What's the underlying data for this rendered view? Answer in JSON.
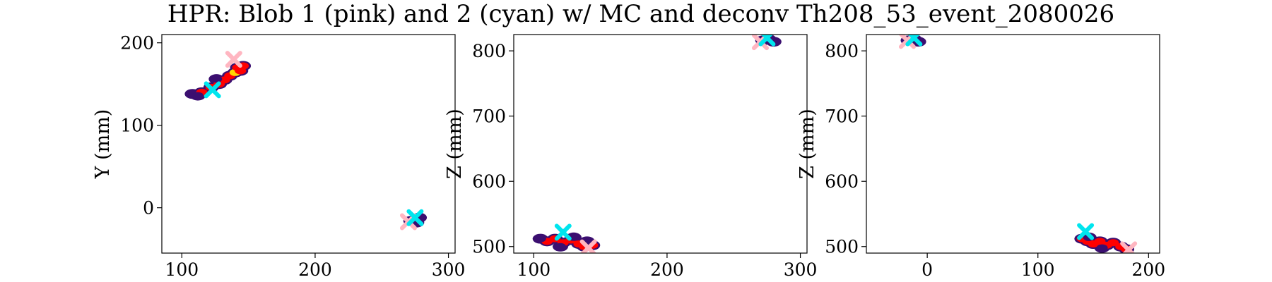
{
  "figure": {
    "title": "HPR: Blob 1 (pink) and 2 (cyan) w/ MC and deconv Th208_53_event_2080026"
  },
  "colors": {
    "blob1": "#ffb6c1",
    "blob2": "#00e5ee",
    "hit_low": "#3b0f70",
    "hit_mid": "#ff0000",
    "hit_high": "#ffd700"
  },
  "chart_data": [
    {
      "type": "scatter",
      "panel": "XY",
      "xlabel": "",
      "ylabel": "Y (mm)",
      "xlim": [
        85,
        305
      ],
      "ylim": [
        -55,
        210
      ],
      "xticks": [
        100,
        200,
        300
      ],
      "yticks": [
        0,
        100,
        200
      ],
      "grid": false,
      "hits": [
        {
          "x": 108,
          "y": 138,
          "e": 0.1
        },
        {
          "x": 115,
          "y": 140,
          "e": 0.5
        },
        {
          "x": 122,
          "y": 146,
          "e": 0.6
        },
        {
          "x": 128,
          "y": 150,
          "e": 0.5
        },
        {
          "x": 132,
          "y": 155,
          "e": 0.6
        },
        {
          "x": 136,
          "y": 160,
          "e": 0.7
        },
        {
          "x": 140,
          "y": 164,
          "e": 1.0
        },
        {
          "x": 142,
          "y": 170,
          "e": 0.6
        },
        {
          "x": 146,
          "y": 172,
          "e": 0.4
        },
        {
          "x": 144,
          "y": 166,
          "e": 0.3
        },
        {
          "x": 126,
          "y": 156,
          "e": 0.2
        },
        {
          "x": 112,
          "y": 136,
          "e": 0.1
        },
        {
          "x": 272,
          "y": -16,
          "e": 0.1
        },
        {
          "x": 278,
          "y": -12,
          "e": 0.2
        },
        {
          "x": 276,
          "y": -18,
          "e": 0.1
        }
      ],
      "blob1": [
        {
          "x": 139,
          "y": 180
        },
        {
          "x": 270,
          "y": -17
        }
      ],
      "blob2": [
        {
          "x": 123,
          "y": 143
        },
        {
          "x": 275,
          "y": -12
        }
      ]
    },
    {
      "type": "scatter",
      "panel": "XZ",
      "xlabel": "",
      "ylabel": "Z (mm)",
      "xlim": [
        85,
        305
      ],
      "ylim": [
        490,
        825
      ],
      "xticks": [
        100,
        200,
        300
      ],
      "yticks": [
        500,
        600,
        700,
        800
      ],
      "grid": false,
      "hits": [
        {
          "x": 110,
          "y": 508,
          "e": 0.4
        },
        {
          "x": 116,
          "y": 512,
          "e": 0.5
        },
        {
          "x": 122,
          "y": 506,
          "e": 0.6
        },
        {
          "x": 128,
          "y": 510,
          "e": 0.5
        },
        {
          "x": 134,
          "y": 504,
          "e": 0.7
        },
        {
          "x": 138,
          "y": 500,
          "e": 0.6
        },
        {
          "x": 144,
          "y": 502,
          "e": 0.4
        },
        {
          "x": 130,
          "y": 514,
          "e": 0.2
        },
        {
          "x": 140,
          "y": 508,
          "e": 0.1
        },
        {
          "x": 105,
          "y": 512,
          "e": 0.1
        },
        {
          "x": 120,
          "y": 500,
          "e": 0.2
        },
        {
          "x": 272,
          "y": 816,
          "e": 0.1
        },
        {
          "x": 280,
          "y": 814,
          "e": 0.2
        },
        {
          "x": 276,
          "y": 818,
          "e": 0.1
        }
      ],
      "blob1": [
        {
          "x": 141,
          "y": 498
        },
        {
          "x": 270,
          "y": 814
        }
      ],
      "blob2": [
        {
          "x": 122,
          "y": 522
        },
        {
          "x": 275,
          "y": 820
        }
      ]
    },
    {
      "type": "scatter",
      "panel": "YZ",
      "xlabel": "",
      "ylabel": "Z (mm)",
      "xlim": [
        -55,
        210
      ],
      "ylim": [
        490,
        825
      ],
      "xticks": [
        0,
        100,
        200
      ],
      "yticks": [
        500,
        600,
        700,
        800
      ],
      "grid": false,
      "hits": [
        {
          "x": 140,
          "y": 512,
          "e": 0.3
        },
        {
          "x": 145,
          "y": 508,
          "e": 0.5
        },
        {
          "x": 150,
          "y": 504,
          "e": 0.6
        },
        {
          "x": 156,
          "y": 508,
          "e": 0.6
        },
        {
          "x": 162,
          "y": 502,
          "e": 0.7
        },
        {
          "x": 168,
          "y": 506,
          "e": 0.5
        },
        {
          "x": 175,
          "y": 500,
          "e": 0.4
        },
        {
          "x": 180,
          "y": 496,
          "e": 0.3
        },
        {
          "x": 146,
          "y": 514,
          "e": 0.1
        },
        {
          "x": 158,
          "y": 498,
          "e": 0.2
        },
        {
          "x": -17,
          "y": 816,
          "e": 0.1
        },
        {
          "x": -12,
          "y": 818,
          "e": 0.2
        },
        {
          "x": -8,
          "y": 814,
          "e": 0.1
        }
      ],
      "blob1": [
        {
          "x": 182,
          "y": 495
        },
        {
          "x": -18,
          "y": 816
        }
      ],
      "blob2": [
        {
          "x": 143,
          "y": 523
        },
        {
          "x": -12,
          "y": 820
        }
      ]
    }
  ]
}
